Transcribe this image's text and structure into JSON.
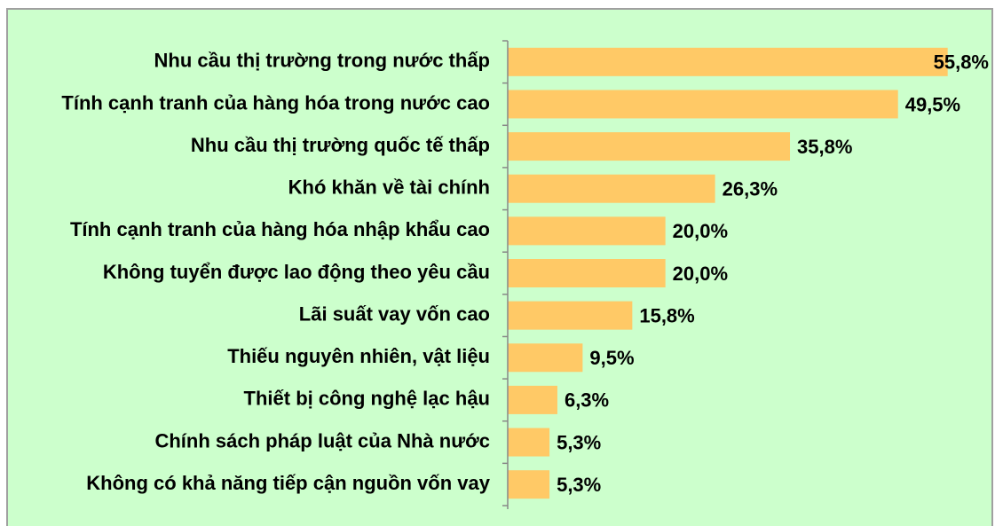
{
  "chart_data": {
    "type": "bar",
    "horizontal": true,
    "categories": [
      "Nhu cầu thị trường trong nước thấp",
      "Tính cạnh tranh của hàng hóa trong nước cao",
      "Nhu cầu thị trường quốc tế thấp",
      "Khó khăn về tài chính",
      "Tính cạnh tranh của hàng hóa nhập khẩu cao",
      "Không tuyển được lao động theo yêu cầu",
      "Lãi suất vay vốn cao",
      "Thiếu nguyên nhiên, vật liệu",
      "Thiết bị công nghệ lạc hậu",
      "Chính sách pháp luật của Nhà nước",
      "Không có khả năng tiếp cận nguồn vốn vay"
    ],
    "values": [
      55.8,
      49.5,
      35.8,
      26.3,
      20.0,
      20.0,
      15.8,
      9.5,
      6.3,
      5.3,
      5.3
    ],
    "value_labels": [
      "55,8%",
      "49,5%",
      "35,8%",
      "26,3%",
      "20,0%",
      "20,0%",
      "15,8%",
      "9,5%",
      "6,3%",
      "5,3%",
      "5,3%"
    ],
    "color": "#ffc966",
    "xlim": [
      0,
      60
    ]
  }
}
